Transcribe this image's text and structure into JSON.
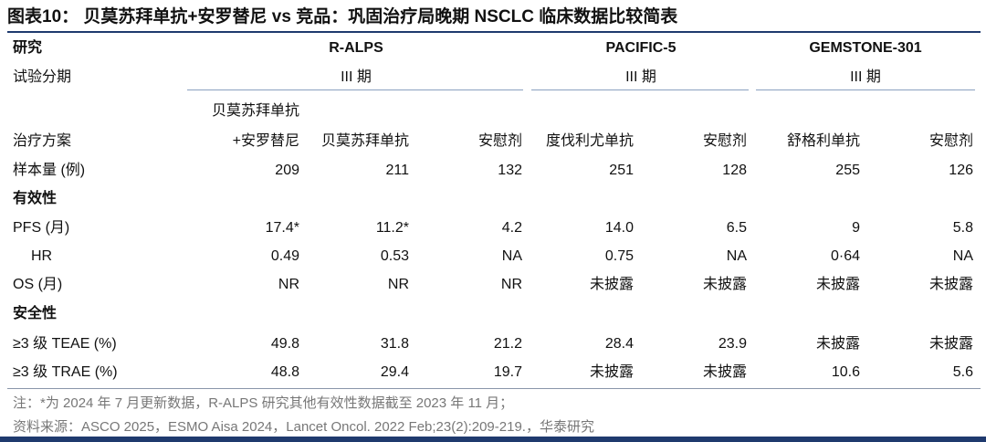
{
  "title": "图表10： 贝莫苏拜单抗+安罗替尼 vs 竞品：巩固治疗局晚期 NSCLC 临床数据比较简表",
  "header": {
    "row_label": "研究",
    "studies": [
      "R-ALPS",
      "PACIFIC-5",
      "GEMSTONE-301"
    ]
  },
  "phase": {
    "label": "试验分期",
    "values": [
      "III 期",
      "III 期",
      "III 期"
    ]
  },
  "regimen": {
    "label": "治疗方案",
    "combo_line1": "贝莫苏拜单抗",
    "combo_line2": "+安罗替尼",
    "arms": [
      "贝莫苏拜单抗",
      "安慰剂",
      "度伐利尤单抗",
      "安慰剂",
      "舒格利单抗",
      "安慰剂"
    ]
  },
  "rows": [
    {
      "label": "样本量 (例)",
      "values": [
        "209",
        "211",
        "132",
        "251",
        "128",
        "255",
        "126"
      ]
    },
    {
      "label": "有效性",
      "section": true
    },
    {
      "label": "PFS (月)",
      "values": [
        "17.4*",
        "11.2*",
        "4.2",
        "14.0",
        "6.5",
        "9",
        "5.8"
      ]
    },
    {
      "label": "HR",
      "indent": true,
      "values": [
        "0.49",
        "0.53",
        "NA",
        "0.75",
        "NA",
        "0·64",
        "NA"
      ]
    },
    {
      "label": "OS (月)",
      "values": [
        "NR",
        "NR",
        "NR",
        "未披露",
        "未披露",
        "未披露",
        "未披露"
      ]
    },
    {
      "label": "安全性",
      "section": true
    },
    {
      "label": "≥3 级 TEAE (%)",
      "values": [
        "49.8",
        "31.8",
        "21.2",
        "28.4",
        "23.9",
        "未披露",
        "未披露"
      ]
    },
    {
      "label": "≥3 级 TRAE (%)",
      "values": [
        "48.8",
        "29.4",
        "19.7",
        "未披露",
        "未披露",
        "10.6",
        "5.6"
      ]
    }
  ],
  "notes": {
    "note1": "注：*为 2024 年 7 月更新数据，R-ALPS 研究其他有效性数据截至 2023 年 11 月；",
    "note2": "资料来源：ASCO 2025，ESMO Aisa 2024，Lancet Oncol. 2022 Feb;23(2):209-219.，华泰研究"
  }
}
